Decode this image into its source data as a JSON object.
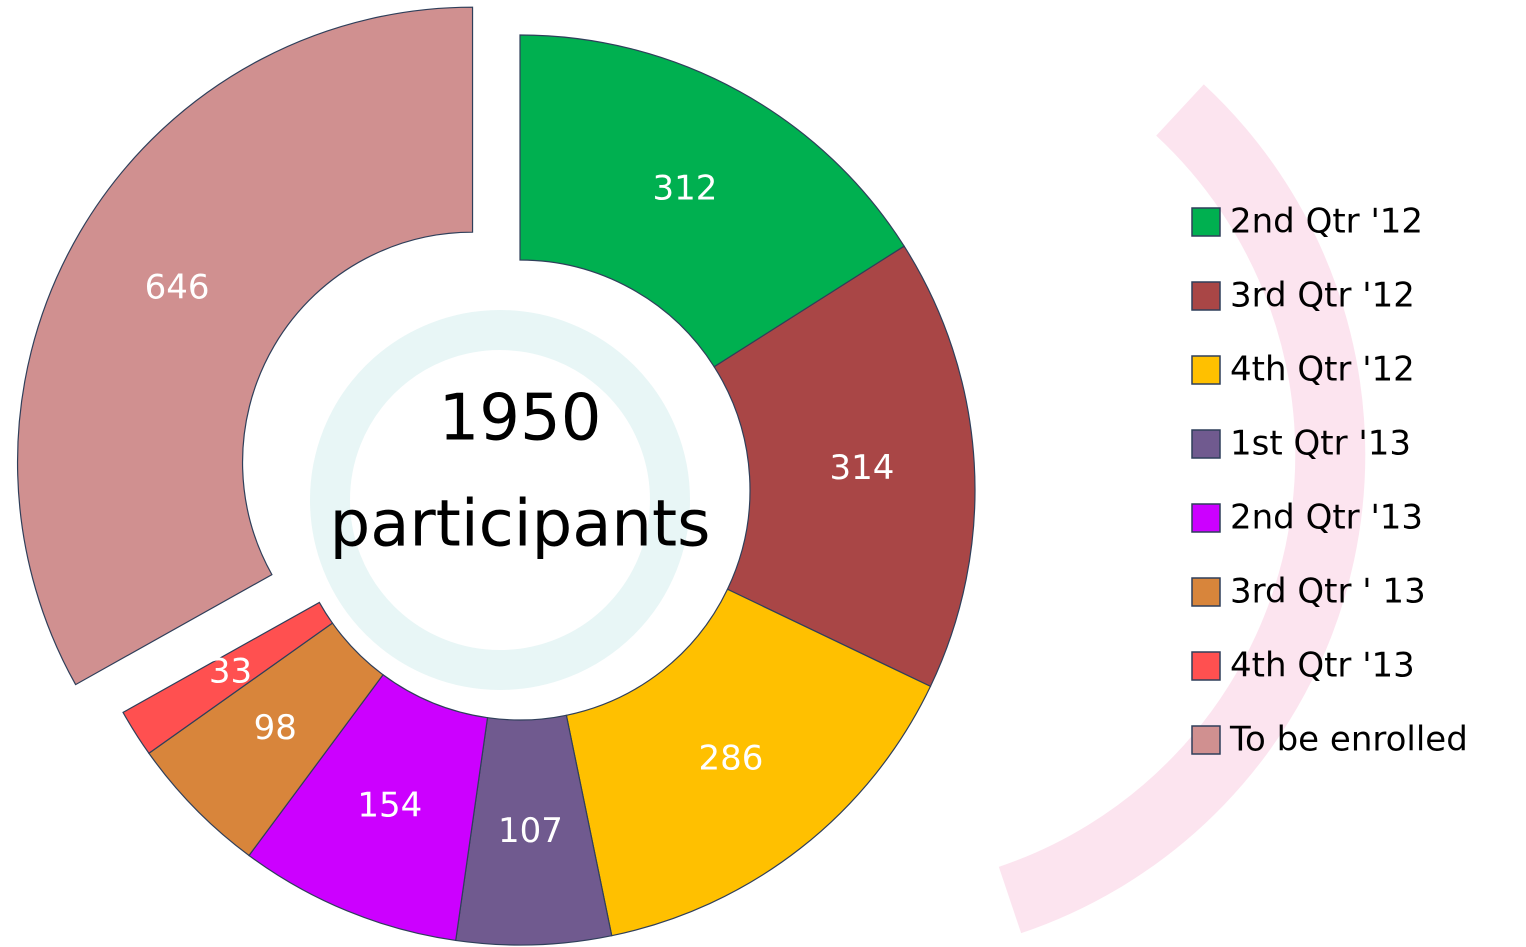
{
  "chart_data": {
    "type": "donut",
    "categories": [
      "2nd Qtr '12",
      "3rd Qtr '12",
      "4th Qtr '12",
      "1st Qtr '13",
      "2nd Qtr '13",
      "3rd Qtr ' 13",
      "4th Qtr '13",
      "To be enrolled"
    ],
    "values": [
      312,
      314,
      286,
      107,
      154,
      98,
      33,
      646
    ],
    "colors": [
      "#00b050",
      "#a94646",
      "#ffc000",
      "#705a8f",
      "#cc00ff",
      "#d8853b",
      "#ff5050",
      "#d09090"
    ],
    "exploded": "To be enrolled",
    "center_value": 1950,
    "center_label": "participants",
    "legend": "right"
  }
}
